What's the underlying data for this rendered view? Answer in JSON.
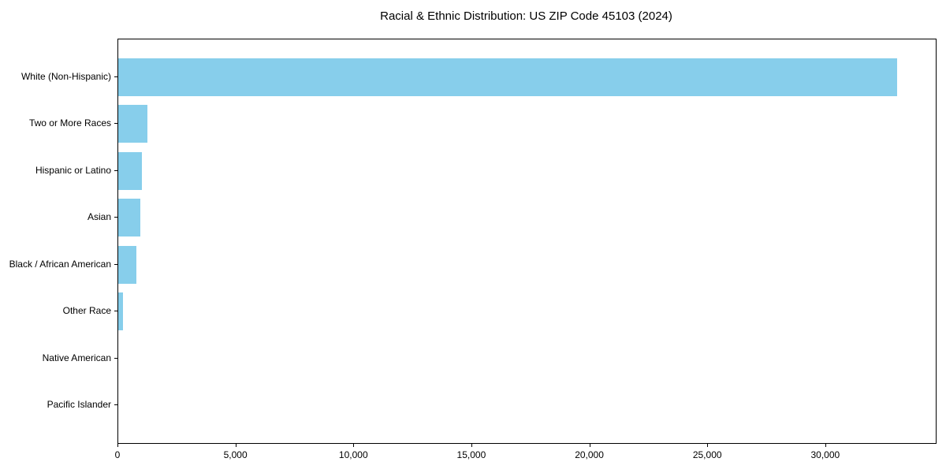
{
  "title": "Racial & Ethnic Distribution: US ZIP Code 45103 (2024)",
  "chart_data": {
    "type": "bar",
    "orientation": "horizontal",
    "title": "Racial & Ethnic Distribution: US ZIP Code 45103 (2024)",
    "categories": [
      "White (Non-Hispanic)",
      "Two or More Races",
      "Hispanic or Latino",
      "Asian",
      "Black / African American",
      "Other Race",
      "Native American",
      "Pacific Islander"
    ],
    "values": [
      33000,
      1220,
      990,
      950,
      780,
      190,
      0,
      0
    ],
    "xlabel": "",
    "ylabel": "",
    "xlim": [
      0,
      34650
    ],
    "x_ticks": [
      0,
      5000,
      10000,
      15000,
      20000,
      25000,
      30000
    ],
    "x_tick_labels": [
      "0",
      "5,000",
      "10,000",
      "15,000",
      "20,000",
      "25,000",
      "30,000"
    ],
    "bar_color": "#87CEEB",
    "axis_color": "#000000",
    "text_color": "#000000",
    "background_color": "#FFFFFF",
    "grid": false,
    "legend": null
  }
}
